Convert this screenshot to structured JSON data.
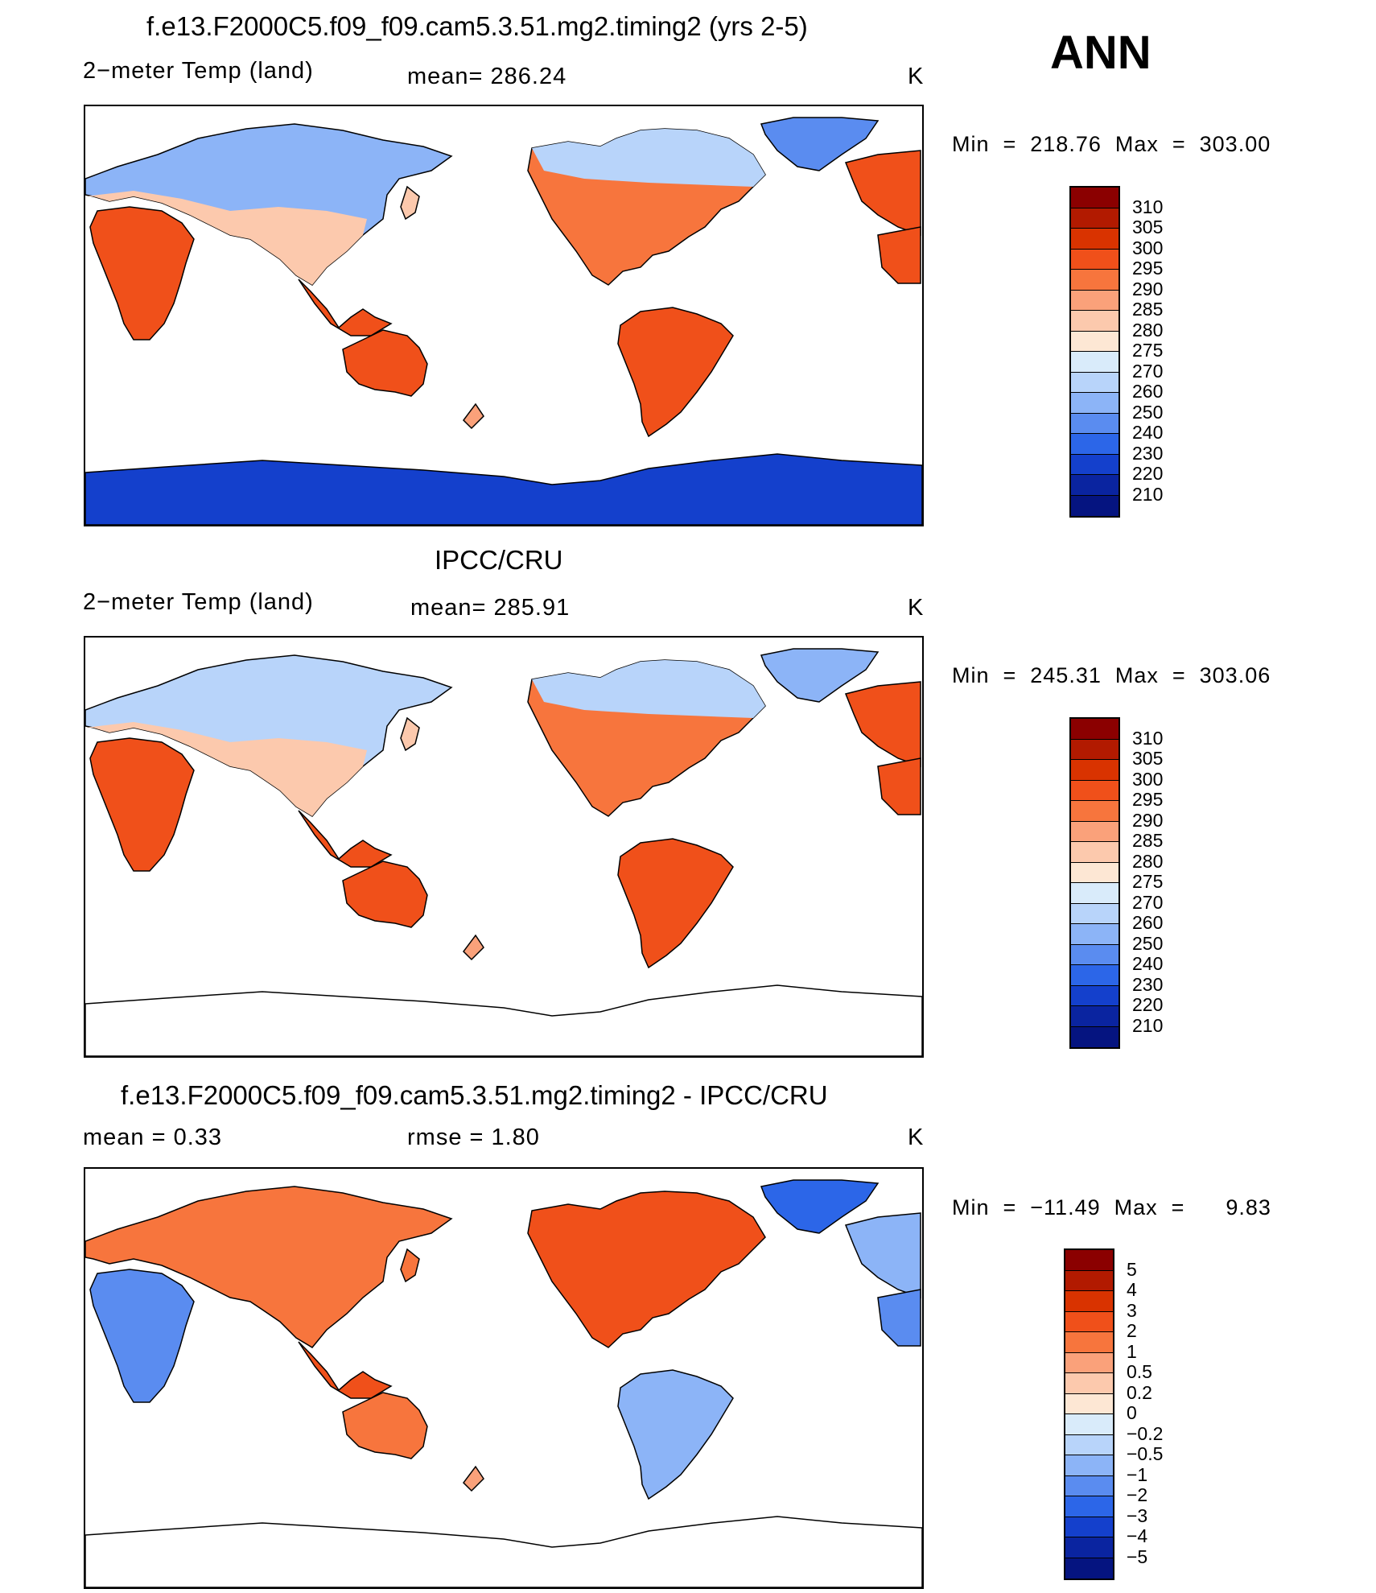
{
  "season": "ANN",
  "panels": [
    {
      "title": "f.e13.F2000C5.f09_f09.cam5.3.51.mg2.timing2 (yrs 2-5)",
      "left_label": "2−meter Temp (land)",
      "mid_label": "mean=  286.24",
      "units": "K",
      "minmax": "Min  =  218.76  Max  =  303.00",
      "colorbar_labels": [
        "310",
        "305",
        "300",
        "295",
        "290",
        "285",
        "280",
        "275",
        "270",
        "260",
        "250",
        "240",
        "230",
        "220",
        "210"
      ],
      "colorbar_colors": [
        "#8b0000",
        "#b21a00",
        "#d93300",
        "#f0501a",
        "#f7753d",
        "#faa17a",
        "#fcc9ad",
        "#fde7d4",
        "#d9ebfa",
        "#b8d4fa",
        "#8cb4f7",
        "#5a8cf0",
        "#2c66e8",
        "#1440cc",
        "#0a24a0",
        "#051480"
      ],
      "map_style": "model"
    },
    {
      "title": "IPCC/CRU",
      "left_label": "2−meter Temp (land)",
      "mid_label": "mean=  285.91",
      "units": "K",
      "minmax": "Min  =  245.31  Max  =  303.06",
      "colorbar_labels": [
        "310",
        "305",
        "300",
        "295",
        "290",
        "285",
        "280",
        "275",
        "270",
        "260",
        "250",
        "240",
        "230",
        "220",
        "210"
      ],
      "colorbar_colors": [
        "#8b0000",
        "#b21a00",
        "#d93300",
        "#f0501a",
        "#f7753d",
        "#faa17a",
        "#fcc9ad",
        "#fde7d4",
        "#d9ebfa",
        "#b8d4fa",
        "#8cb4f7",
        "#5a8cf0",
        "#2c66e8",
        "#1440cc",
        "#0a24a0",
        "#051480"
      ],
      "map_style": "obs"
    },
    {
      "title": "f.e13.F2000C5.f09_f09.cam5.3.51.mg2.timing2 - IPCC/CRU",
      "left_label": "mean  =      0.33",
      "mid_label": "rmse  =      1.80",
      "units": "K",
      "minmax": "Min  =  −11.49  Max  =      9.83",
      "colorbar_labels": [
        "5",
        "4",
        "3",
        "2",
        "1",
        "0.5",
        "0.2",
        "0",
        "−0.2",
        "−0.5",
        "−1",
        "−2",
        "−3",
        "−4",
        "−5"
      ],
      "colorbar_colors": [
        "#8b0000",
        "#b21a00",
        "#d93300",
        "#f0501a",
        "#f7753d",
        "#faa17a",
        "#fcc9ad",
        "#fde7d4",
        "#d9ebfa",
        "#b8d4fa",
        "#8cb4f7",
        "#5a8cf0",
        "#2c66e8",
        "#1440cc",
        "#0a24a0",
        "#051480"
      ],
      "map_style": "diff"
    }
  ]
}
